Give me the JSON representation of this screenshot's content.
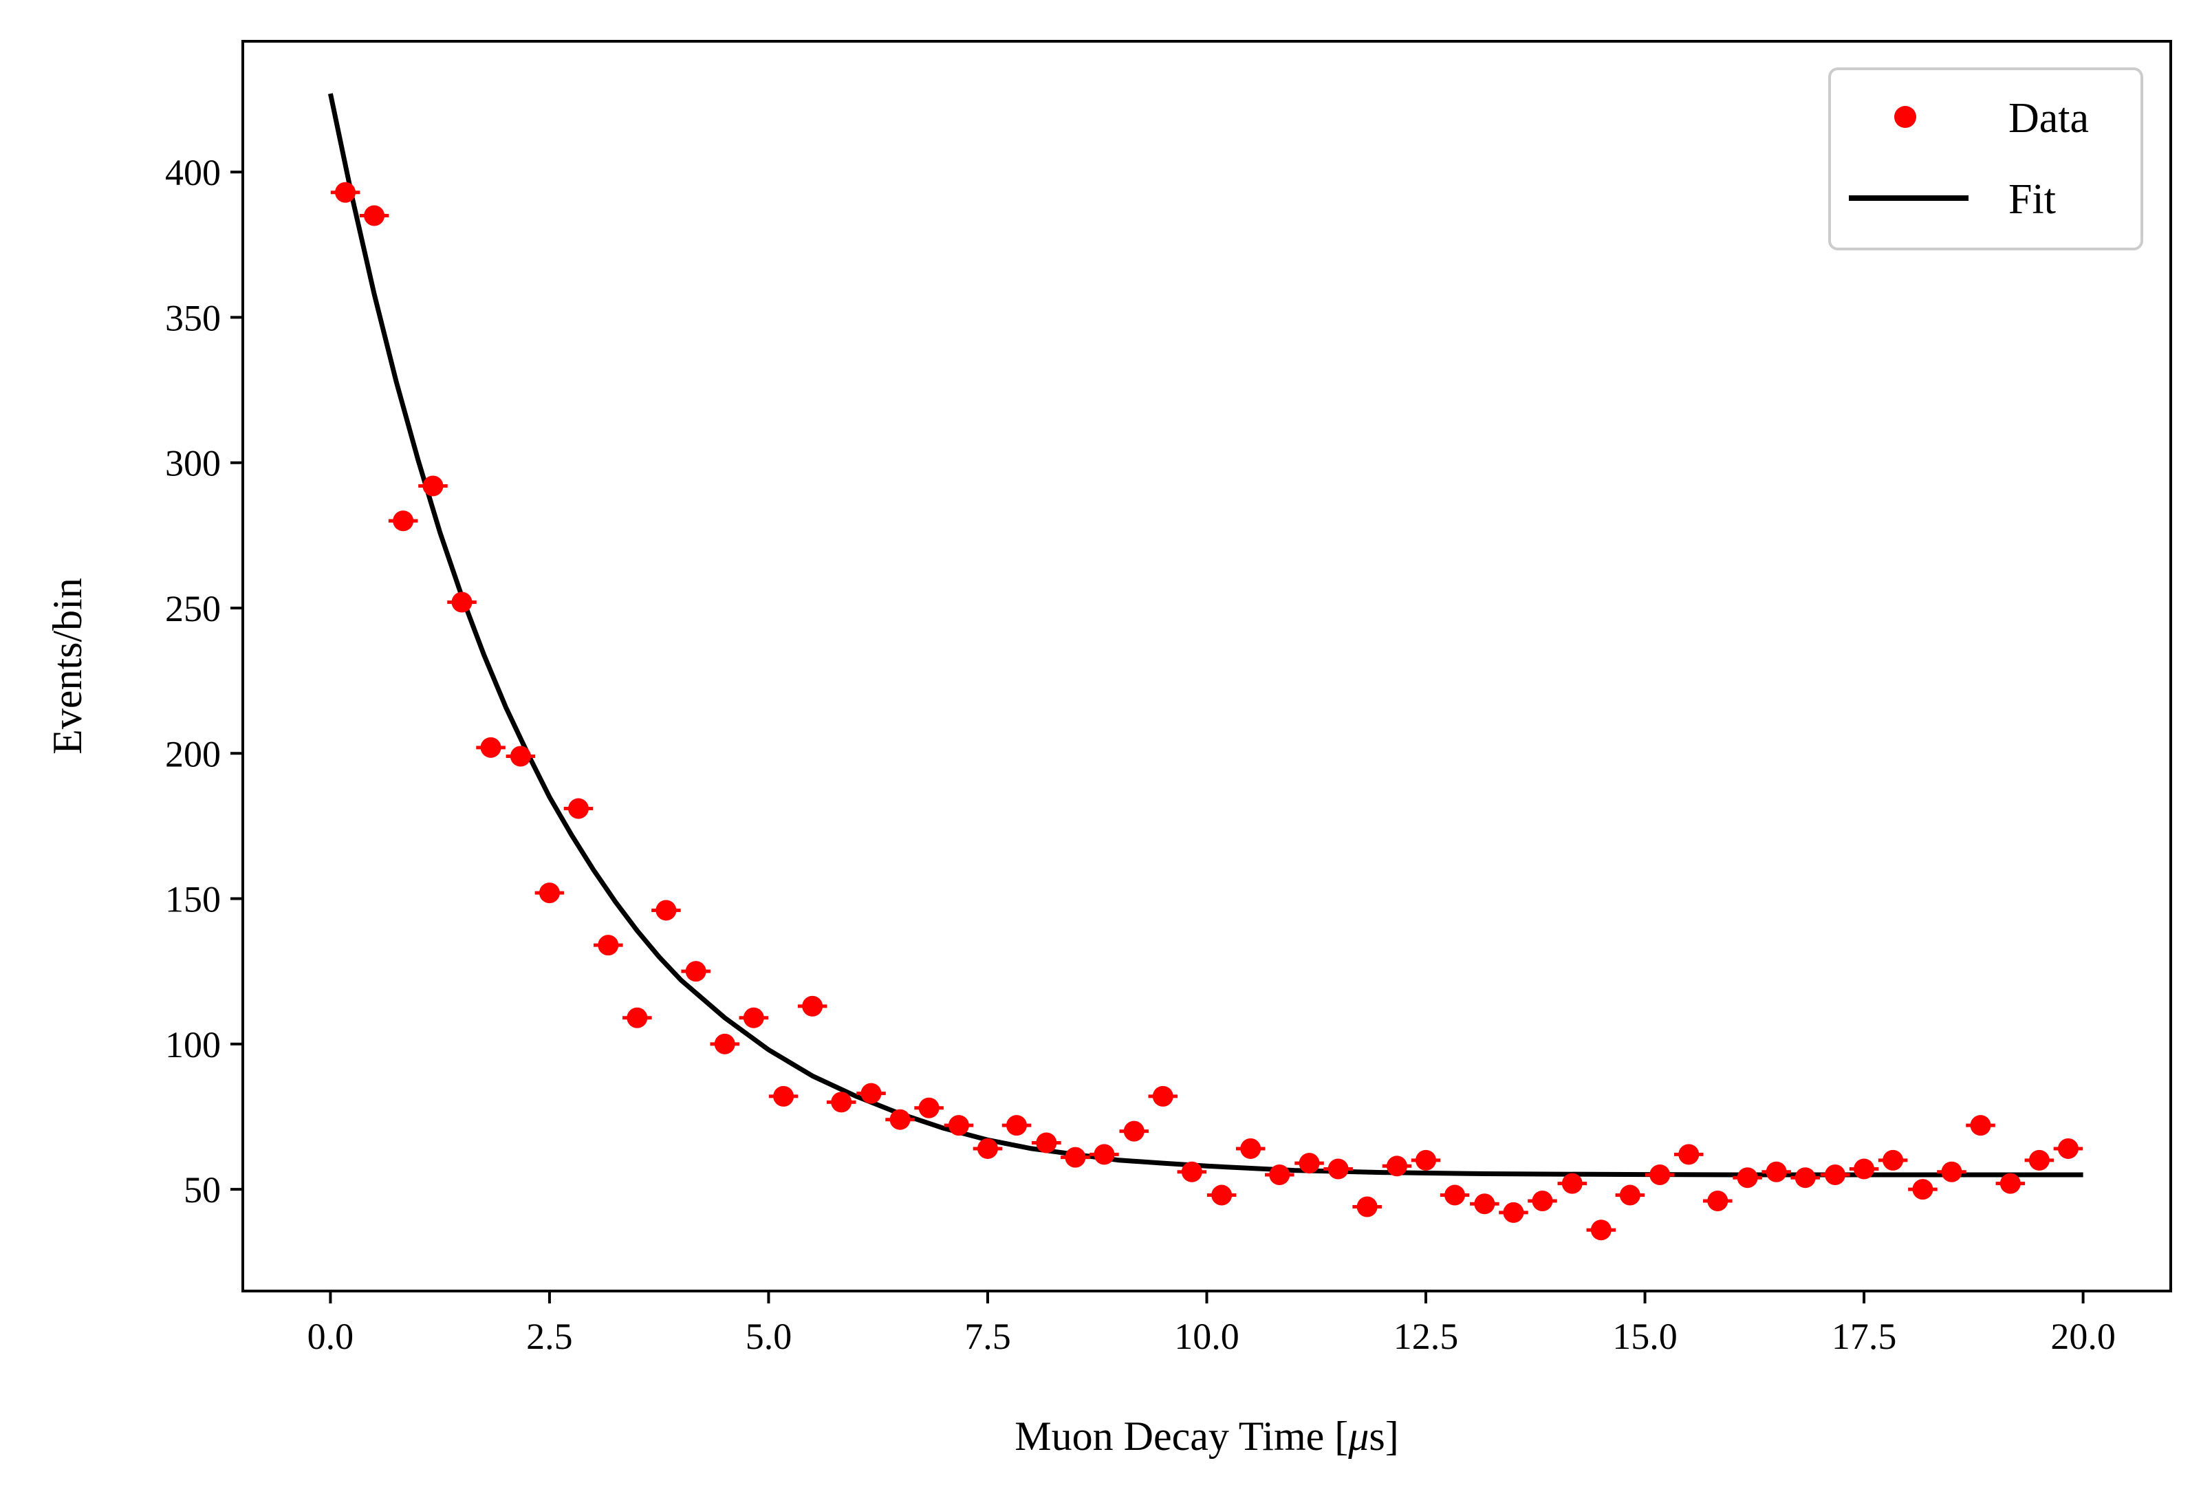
{
  "chart_data": {
    "type": "scatter",
    "title": "",
    "xlabel": "Muon Decay Time [",
    "xlabel_mu": "μ",
    "xlabel_unit": "s]",
    "ylabel": "Events/bin",
    "xlim": [
      -1.0,
      21.0
    ],
    "ylim": [
      15,
      445
    ],
    "xticks": [
      0.0,
      2.5,
      5.0,
      7.5,
      10.0,
      12.5,
      15.0,
      17.5,
      20.0
    ],
    "xtick_labels": [
      "0.0",
      "2.5",
      "5.0",
      "7.5",
      "10.0",
      "12.5",
      "15.0",
      "17.5",
      "20.0"
    ],
    "yticks": [
      50,
      100,
      150,
      200,
      250,
      300,
      350,
      400
    ],
    "ytick_labels": [
      "50",
      "100",
      "150",
      "200",
      "250",
      "300",
      "350",
      "400"
    ],
    "grid": false,
    "legend": {
      "position": "top-right",
      "entries": [
        "Data",
        "Fit"
      ]
    },
    "series": [
      {
        "name": "Data",
        "kind": "scatter-errorbar",
        "color": "#ff0000",
        "x": [
          0.17,
          0.5,
          0.83,
          1.17,
          1.5,
          1.83,
          2.17,
          2.5,
          2.83,
          3.17,
          3.5,
          3.83,
          4.17,
          4.5,
          4.83,
          5.17,
          5.5,
          5.83,
          6.17,
          6.5,
          6.83,
          7.17,
          7.5,
          7.83,
          8.17,
          8.5,
          8.83,
          9.17,
          9.5,
          9.83,
          10.17,
          10.5,
          10.83,
          11.17,
          11.5,
          11.83,
          12.17,
          12.5,
          12.83,
          13.17,
          13.5,
          13.83,
          14.17,
          14.5,
          14.83,
          15.17,
          15.5,
          15.83,
          16.17,
          16.5,
          16.83,
          17.17,
          17.5,
          17.83,
          18.17,
          18.5,
          18.83,
          19.17,
          19.5,
          19.83
        ],
        "y": [
          393,
          385,
          280,
          292,
          252,
          202,
          199,
          152,
          181,
          134,
          109,
          146,
          125,
          100,
          109,
          82,
          113,
          80,
          83,
          74,
          78,
          72,
          64,
          72,
          66,
          61,
          62,
          70,
          82,
          56,
          48,
          64,
          55,
          59,
          57,
          44,
          58,
          60,
          48,
          45,
          42,
          46,
          52,
          36,
          48,
          55,
          62,
          46,
          54,
          56,
          54,
          55,
          57,
          60,
          50,
          56,
          72,
          52,
          60,
          64
        ],
        "xerr": 0.167
      },
      {
        "name": "Fit",
        "kind": "line",
        "color": "#000000",
        "x": [
          0.0,
          0.25,
          0.5,
          0.75,
          1.0,
          1.25,
          1.5,
          1.75,
          2.0,
          2.25,
          2.5,
          2.75,
          3.0,
          3.25,
          3.5,
          3.75,
          4.0,
          4.5,
          5.0,
          5.5,
          6.0,
          6.5,
          7.0,
          7.5,
          8.0,
          8.5,
          9.0,
          9.5,
          10.0,
          11.0,
          12.0,
          13.0,
          14.0,
          15.0,
          16.0,
          17.0,
          18.0,
          19.0,
          20.0
        ],
        "y": [
          427,
          391,
          358,
          328,
          301,
          276,
          254,
          234,
          216,
          200,
          185,
          172,
          160,
          149,
          139,
          130,
          122,
          109,
          98,
          89,
          82,
          76,
          71,
          67,
          64,
          62,
          60,
          59,
          58,
          56.5,
          55.8,
          55.4,
          55.2,
          55.1,
          55.0,
          55.0,
          55.0,
          55.0,
          55.0
        ]
      }
    ]
  }
}
